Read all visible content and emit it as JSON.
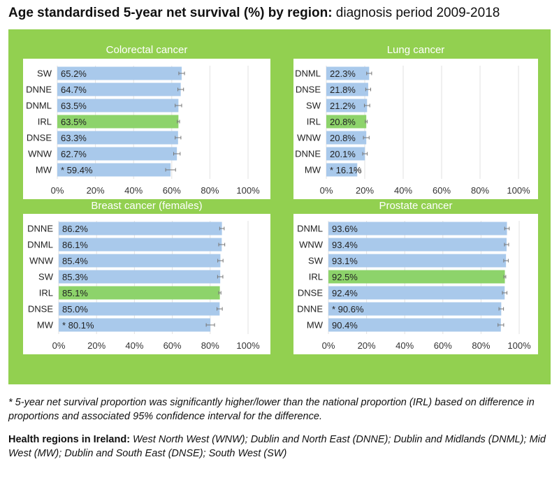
{
  "title_bold": "Age standardised 5-year net survival (%) by region:",
  "title_rest": " diagnosis period 2009-2018",
  "colors": {
    "background": "#92d050",
    "bar": "#a9c9eb",
    "national_bar": "#8dd36b",
    "error_bar": "#777777"
  },
  "chart_data": [
    {
      "type": "bar",
      "orientation": "horizontal",
      "title": "Colorectal cancer",
      "xlim": [
        0,
        100
      ],
      "xticks": [
        "0%",
        "20%",
        "40%",
        "60%",
        "80%",
        "100%"
      ],
      "categories": [
        "SW",
        "DNNE",
        "DNML",
        "IRL",
        "DNSE",
        "WNW",
        "MW"
      ],
      "values": [
        65.2,
        64.7,
        63.5,
        63.5,
        63.3,
        62.7,
        59.4
      ],
      "labels": [
        "65.2%",
        "64.7%",
        "63.5%",
        "63.5%",
        "63.3%",
        "62.7%",
        "* 59.4%"
      ],
      "ci_low": [
        63.7,
        63.2,
        61.8,
        62.9,
        61.8,
        61.0,
        56.8
      ],
      "ci_high": [
        66.7,
        66.2,
        65.2,
        64.1,
        64.8,
        64.4,
        62.0
      ]
    },
    {
      "type": "bar",
      "orientation": "horizontal",
      "title": "Lung cancer",
      "xlim": [
        0,
        100
      ],
      "xticks": [
        "0%",
        "20%",
        "40%",
        "60%",
        "80%",
        "100%"
      ],
      "categories": [
        "DNML",
        "DNSE",
        "SW",
        "IRL",
        "WNW",
        "DNNE",
        "MW"
      ],
      "values": [
        22.3,
        21.8,
        21.2,
        20.8,
        20.8,
        20.1,
        16.1
      ],
      "labels": [
        "22.3%",
        "21.8%",
        "21.2%",
        "20.8%",
        "20.8%",
        "20.1%",
        "* 16.1%"
      ],
      "ci_low": [
        21.0,
        20.5,
        19.8,
        20.3,
        19.3,
        18.9,
        14.4
      ],
      "ci_high": [
        23.6,
        23.1,
        22.6,
        21.3,
        22.3,
        21.3,
        17.8
      ]
    },
    {
      "type": "bar",
      "orientation": "horizontal",
      "title": "Breast cancer (females)",
      "xlim": [
        0,
        100
      ],
      "xticks": [
        "0%",
        "20%",
        "40%",
        "60%",
        "80%",
        "100%"
      ],
      "categories": [
        "DNNE",
        "DNML",
        "WNW",
        "SW",
        "IRL",
        "DNSE",
        "MW"
      ],
      "values": [
        86.2,
        86.1,
        85.4,
        85.3,
        85.1,
        85.0,
        80.1
      ],
      "labels": [
        "86.2%",
        "86.1%",
        "85.4%",
        "85.3%",
        "85.1%",
        "85.0%",
        "* 80.1%"
      ],
      "ci_low": [
        85.0,
        84.5,
        84.0,
        83.9,
        84.5,
        83.6,
        77.9
      ],
      "ci_high": [
        87.4,
        87.7,
        86.8,
        86.7,
        85.7,
        86.4,
        82.3
      ]
    },
    {
      "type": "bar",
      "orientation": "horizontal",
      "title": "Prostate cancer",
      "xlim": [
        0,
        100
      ],
      "xticks": [
        "0%",
        "20%",
        "40%",
        "60%",
        "80%",
        "100%"
      ],
      "categories": [
        "DNML",
        "WNW",
        "SW",
        "IRL",
        "DNSE",
        "DNNE",
        "MW"
      ],
      "values": [
        93.6,
        93.4,
        93.1,
        92.5,
        92.4,
        90.6,
        90.4
      ],
      "labels": [
        "93.6%",
        "93.4%",
        "93.1%",
        "92.5%",
        "92.4%",
        "* 90.6%",
        "90.4%"
      ],
      "ci_low": [
        92.4,
        92.3,
        91.9,
        92.0,
        91.2,
        89.4,
        88.9
      ],
      "ci_high": [
        94.8,
        94.5,
        94.3,
        93.0,
        93.6,
        91.8,
        91.9
      ]
    }
  ],
  "national_category": "IRL",
  "footnote": "* 5-year net survival proportion was significantly higher/lower than the national proportion (IRL) based on difference in proportions and associated 95% confidence interval for the difference.",
  "regions_label": "Health regions in Ireland:",
  "regions_text": " West North West (WNW); Dublin and North East (DNNE); Dublin and Midlands (DNML); Mid West (MW); Dublin and South East (DNSE); South West (SW)"
}
